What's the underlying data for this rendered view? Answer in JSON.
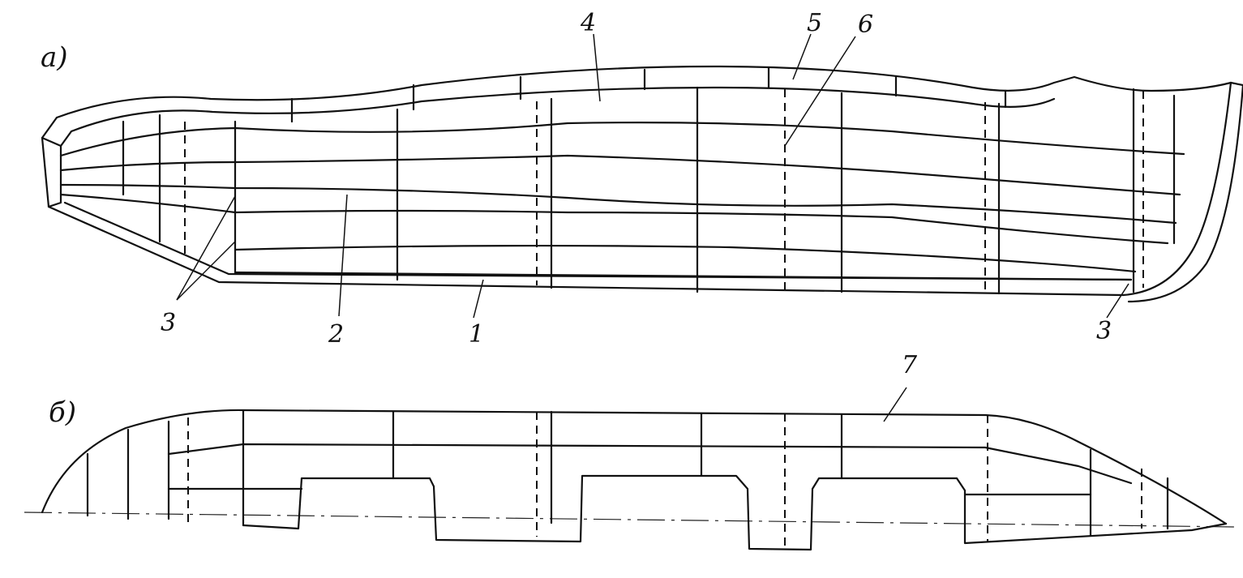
{
  "view_a": {
    "label": "а)"
  },
  "view_b": {
    "label": "б)"
  },
  "callouts": {
    "c1": "1",
    "c2": "2",
    "c3_left": "3",
    "c3_right": "3",
    "c4": "4",
    "c5": "5",
    "c6": "6",
    "c7": "7"
  }
}
